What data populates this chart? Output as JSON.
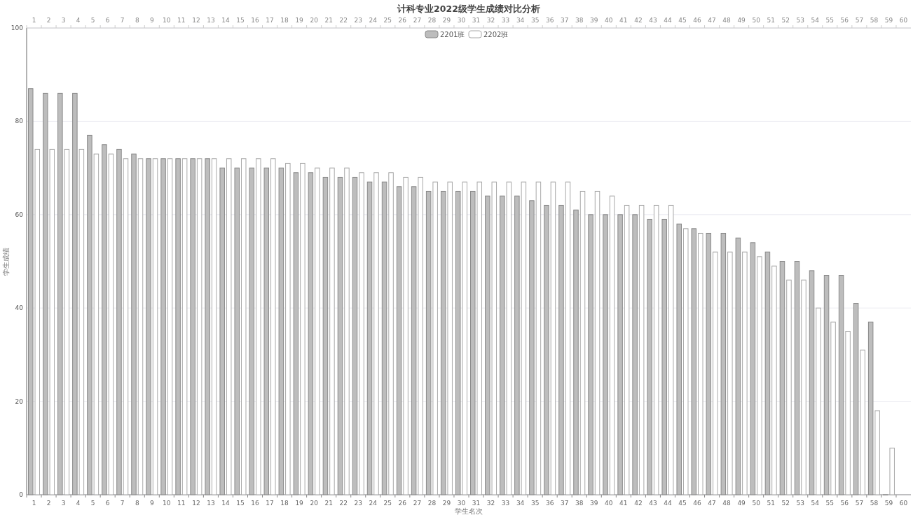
{
  "chart_data": {
    "type": "bar",
    "title": "计科专业2022级学生成绩对比分析",
    "xlabel": "学生名次",
    "ylabel": "学生成绩",
    "categories": [
      "1",
      "2",
      "3",
      "4",
      "5",
      "6",
      "7",
      "8",
      "9",
      "10",
      "11",
      "12",
      "13",
      "14",
      "15",
      "16",
      "17",
      "18",
      "19",
      "20",
      "21",
      "22",
      "23",
      "24",
      "25",
      "26",
      "27",
      "28",
      "29",
      "30",
      "31",
      "32",
      "33",
      "34",
      "35",
      "36",
      "37",
      "38",
      "39",
      "40",
      "41",
      "42",
      "43",
      "44",
      "45",
      "46",
      "47",
      "48",
      "49",
      "50",
      "51",
      "52",
      "53",
      "54",
      "55",
      "56",
      "57",
      "58",
      "59",
      "60"
    ],
    "series": [
      {
        "name": "2201班",
        "color": "#bdbdbd",
        "values": [
          87,
          86,
          86,
          86,
          77,
          75,
          74,
          73,
          72,
          72,
          72,
          72,
          72,
          70,
          70,
          70,
          70,
          70,
          69,
          69,
          68,
          68,
          68,
          67,
          67,
          66,
          66,
          65,
          65,
          65,
          65,
          64,
          64,
          64,
          63,
          62,
          62,
          61,
          60,
          60,
          60,
          60,
          59,
          59,
          58,
          57,
          56,
          56,
          55,
          54,
          52,
          50,
          50,
          48,
          47,
          47,
          41,
          37,
          0,
          null
        ]
      },
      {
        "name": "2202班",
        "color": "#ffffff",
        "values": [
          74,
          74,
          74,
          74,
          73,
          73,
          72,
          72,
          72,
          72,
          72,
          72,
          72,
          72,
          72,
          72,
          72,
          71,
          71,
          70,
          70,
          70,
          69,
          69,
          69,
          68,
          68,
          67,
          67,
          67,
          67,
          67,
          67,
          67,
          67,
          67,
          67,
          65,
          65,
          64,
          62,
          62,
          62,
          62,
          57,
          56,
          52,
          52,
          52,
          51,
          49,
          46,
          46,
          40,
          37,
          35,
          31,
          18,
          10,
          null
        ]
      }
    ],
    "ylim": [
      0,
      100
    ],
    "yticks": [
      0,
      20,
      40,
      60,
      80,
      100
    ],
    "grid": "y",
    "legend": "top"
  }
}
